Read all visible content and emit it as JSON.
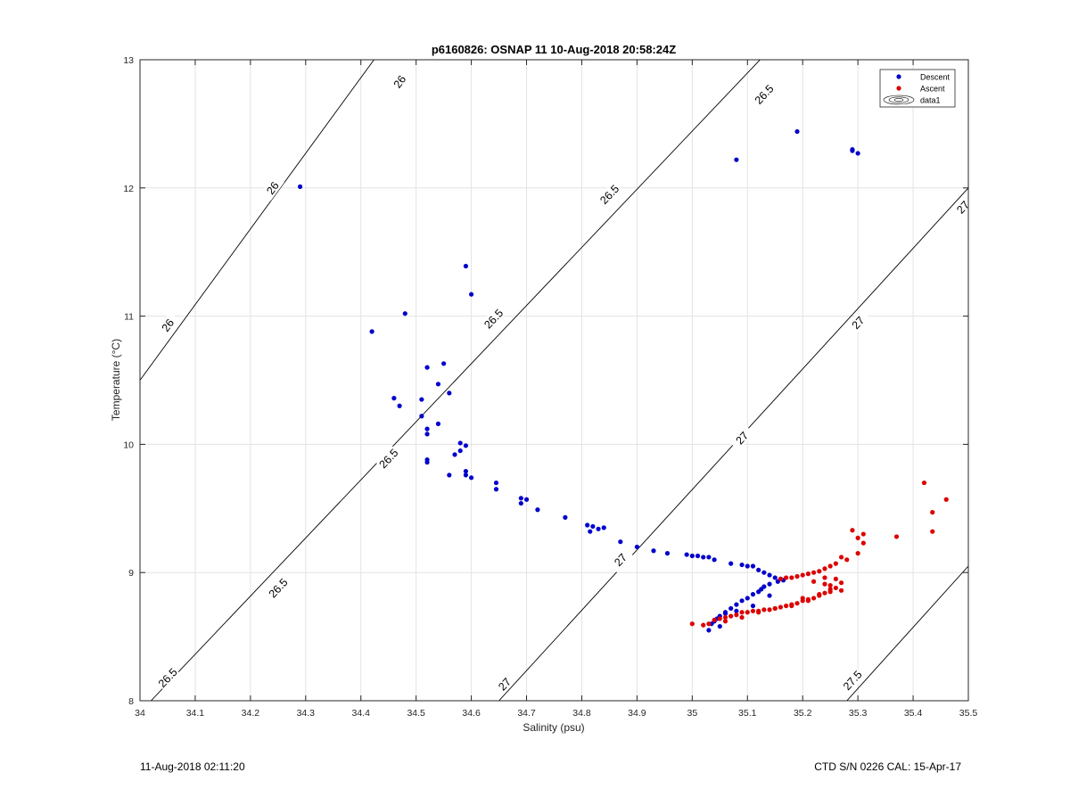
{
  "chart_data": {
    "type": "scatter",
    "title": "p6160826: OSNAP 11 10-Aug-2018 20:58:24Z",
    "xlabel": "Salinity (psu)",
    "ylabel": "Temperature (°C)",
    "xlim": [
      34,
      35.5
    ],
    "ylim": [
      8,
      13
    ],
    "grid": true,
    "x_ticks": [
      "34",
      "34.1",
      "34.2",
      "34.3",
      "34.4",
      "34.5",
      "34.6",
      "34.7",
      "34.8",
      "34.9",
      "35",
      "35.1",
      "35.2",
      "35.3",
      "35.4",
      "35.5"
    ],
    "y_ticks": [
      "8",
      "9",
      "10",
      "11",
      "12",
      "13"
    ],
    "legend": {
      "position": "top-right",
      "entries": [
        "Descent",
        "Ascent",
        "data1"
      ]
    },
    "contours": [
      {
        "label": "26",
        "x": [
          34.0,
          34.5
        ],
        "y": [
          10.5,
          13.45
        ],
        "labels_at": [
          {
            "x": 34.05,
            "y": 10.93
          },
          {
            "x": 34.24,
            "y": 12.0
          },
          {
            "x": 34.47,
            "y": 12.83
          }
        ]
      },
      {
        "label": "26.5",
        "x": [
          34.02,
          35.2
        ],
        "y": [
          8.0,
          13.35
        ],
        "labels_at": [
          {
            "x": 34.05,
            "y": 8.18
          },
          {
            "x": 34.25,
            "y": 8.88
          },
          {
            "x": 34.45,
            "y": 9.89
          },
          {
            "x": 34.64,
            "y": 10.98
          },
          {
            "x": 34.85,
            "y": 11.95
          },
          {
            "x": 35.13,
            "y": 12.73
          }
        ]
      },
      {
        "label": "27",
        "x": [
          34.65,
          35.5
        ],
        "y": [
          8.0,
          12.0
        ],
        "labels_at": [
          {
            "x": 34.66,
            "y": 8.13
          },
          {
            "x": 34.87,
            "y": 9.1
          },
          {
            "x": 35.09,
            "y": 10.05
          },
          {
            "x": 35.3,
            "y": 10.95
          },
          {
            "x": 35.49,
            "y": 11.85
          }
        ]
      },
      {
        "label": "27.5",
        "x": [
          35.28,
          35.5
        ],
        "y": [
          8.0,
          9.05
        ],
        "labels_at": [
          {
            "x": 35.29,
            "y": 8.16
          }
        ]
      }
    ],
    "series": [
      {
        "name": "Descent",
        "color": "#0000cc",
        "x": [
          34.29,
          35.08,
          35.19,
          35.29,
          35.29,
          35.3,
          34.42,
          34.48,
          34.59,
          34.6,
          34.52,
          34.55,
          34.54,
          34.56,
          34.46,
          34.47,
          34.51,
          34.51,
          34.52,
          34.52,
          34.54,
          34.57,
          34.58,
          34.58,
          34.59,
          34.59,
          34.52,
          34.52,
          34.56,
          34.59,
          34.6,
          34.645,
          34.645,
          34.69,
          34.7,
          34.69,
          34.72,
          34.77,
          34.81,
          34.815,
          34.83,
          34.84,
          34.82,
          34.87,
          34.9,
          34.93,
          34.955,
          34.99,
          35.0,
          35.01,
          35.02,
          35.03,
          35.04,
          35.07,
          35.09,
          35.1,
          35.11,
          35.12,
          35.13,
          35.14,
          35.15,
          35.16,
          35.165,
          35.155,
          35.14,
          35.13,
          35.125,
          35.12,
          35.11,
          35.1,
          35.09,
          35.08,
          35.07,
          35.06,
          35.05,
          35.04,
          35.03,
          35.035,
          35.045,
          35.05,
          35.06,
          35.08,
          35.11,
          35.14
        ],
        "y": [
          12.01,
          12.22,
          12.44,
          12.3,
          12.29,
          12.27,
          10.88,
          11.02,
          11.39,
          11.17,
          10.6,
          10.63,
          10.47,
          10.4,
          10.36,
          10.3,
          10.35,
          10.22,
          10.12,
          10.08,
          10.16,
          9.92,
          9.95,
          10.01,
          9.99,
          9.79,
          9.88,
          9.86,
          9.76,
          9.76,
          9.74,
          9.7,
          9.65,
          9.54,
          9.57,
          9.58,
          9.49,
          9.43,
          9.37,
          9.32,
          9.34,
          9.35,
          9.36,
          9.24,
          9.2,
          9.17,
          9.15,
          9.14,
          9.13,
          9.13,
          9.12,
          9.12,
          9.1,
          9.07,
          9.06,
          9.05,
          9.05,
          9.02,
          9.0,
          8.98,
          8.96,
          8.95,
          8.94,
          8.93,
          8.91,
          8.89,
          8.87,
          8.85,
          8.83,
          8.8,
          8.78,
          8.75,
          8.72,
          8.69,
          8.66,
          8.62,
          8.55,
          8.6,
          8.64,
          8.58,
          8.68,
          8.7,
          8.74,
          8.82
        ]
      },
      {
        "name": "Ascent",
        "color": "#dd0000",
        "x": [
          35.42,
          35.46,
          35.435,
          35.435,
          35.29,
          35.3,
          35.31,
          35.31,
          35.37,
          35.3,
          35.28,
          35.27,
          35.26,
          35.25,
          35.24,
          35.23,
          35.22,
          35.21,
          35.2,
          35.19,
          35.18,
          35.17,
          35.16,
          35.24,
          35.25,
          35.26,
          35.27,
          35.25,
          35.24,
          35.23,
          35.22,
          35.21,
          35.2,
          35.19,
          35.18,
          35.17,
          35.16,
          35.15,
          35.14,
          35.13,
          35.12,
          35.11,
          35.1,
          35.09,
          35.08,
          35.07,
          35.06,
          35.05,
          35.04,
          35.03,
          35.0,
          35.02,
          35.06,
          35.09,
          35.12,
          35.15,
          35.18,
          35.21,
          35.23,
          35.25,
          35.27,
          35.26,
          35.24,
          35.22,
          35.2
        ],
        "y": [
          9.7,
          9.57,
          9.47,
          9.32,
          9.33,
          9.27,
          9.3,
          9.23,
          9.28,
          9.15,
          9.1,
          9.12,
          9.07,
          9.05,
          9.03,
          9.01,
          9.0,
          8.99,
          8.98,
          8.97,
          8.96,
          8.96,
          8.95,
          8.91,
          8.9,
          8.88,
          8.86,
          8.85,
          8.84,
          8.82,
          8.8,
          8.79,
          8.78,
          8.76,
          8.75,
          8.74,
          8.73,
          8.72,
          8.71,
          8.71,
          8.7,
          8.7,
          8.69,
          8.69,
          8.67,
          8.66,
          8.65,
          8.64,
          8.63,
          8.6,
          8.6,
          8.59,
          8.62,
          8.65,
          8.69,
          8.72,
          8.74,
          8.78,
          8.83,
          8.87,
          8.92,
          8.95,
          8.96,
          8.93,
          8.8
        ]
      }
    ]
  },
  "footer": {
    "left": "11-Aug-2018 02:11:20",
    "right": "CTD S/N 0226  CAL: 15-Apr-17"
  }
}
